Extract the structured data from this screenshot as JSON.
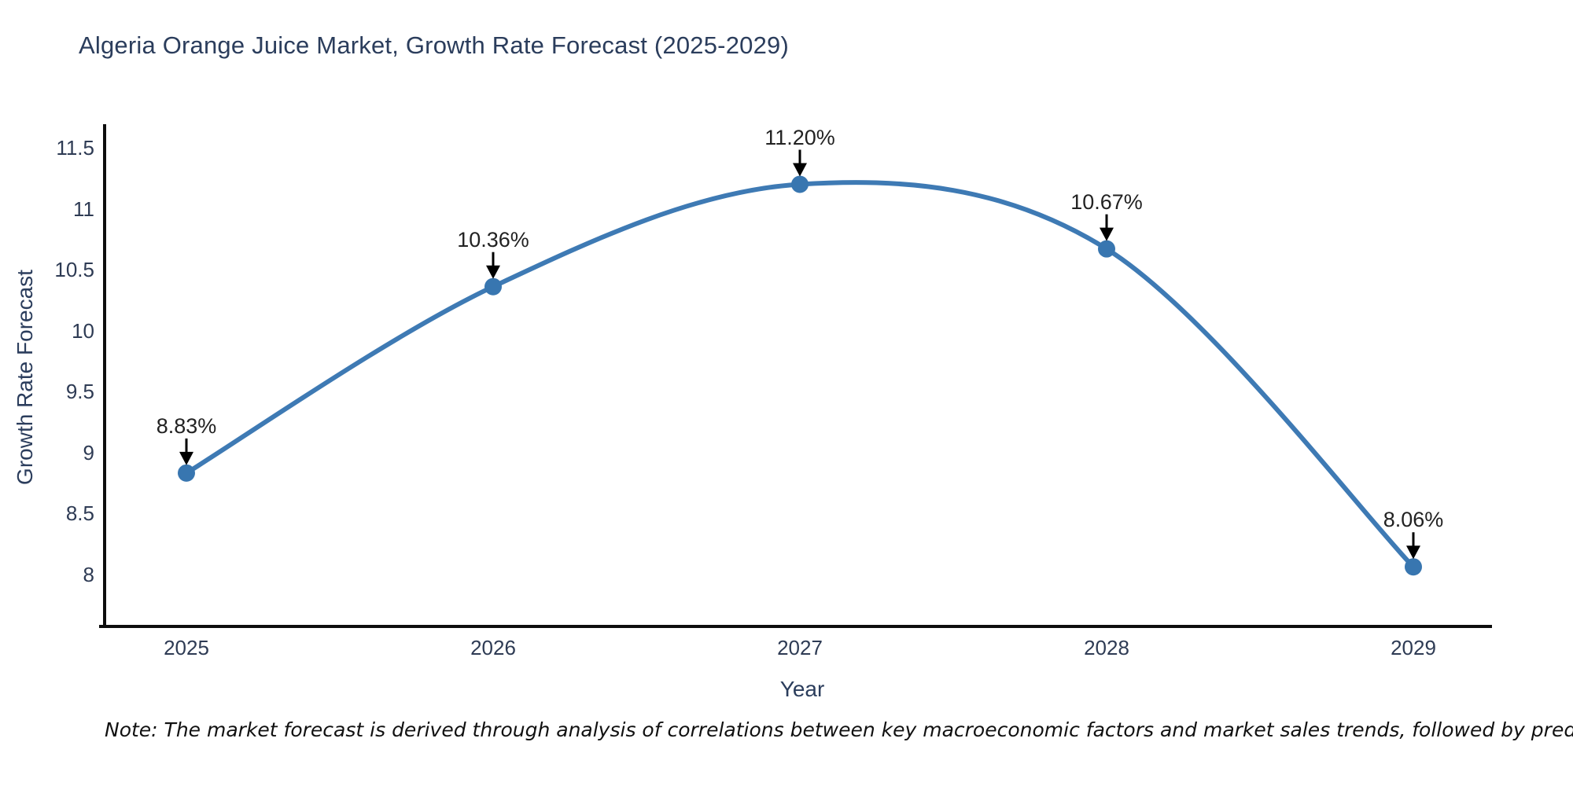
{
  "title": "Algeria Orange Juice Market, Growth Rate Forecast (2025-2029)",
  "note": "Note: The market forecast is derived through analysis of correlations between key macroeconomic factors and market sales trends, followed by predictive modeling to project future sales",
  "axes": {
    "x_label": "Year",
    "y_label": "Growth Rate Forecast",
    "y_ticks": [
      "11.5",
      "11",
      "10.5",
      "10",
      "9.5",
      "9",
      "8.5",
      "8"
    ],
    "x_ticks": [
      "2025",
      "2026",
      "2027",
      "2028",
      "2029"
    ]
  },
  "chart_data": {
    "type": "line",
    "line_shape": "spline",
    "title": "Algeria Orange Juice Market, Growth Rate Forecast (2025-2029)",
    "xlabel": "Year",
    "ylabel": "Growth Rate Forecast",
    "x": [
      2025,
      2026,
      2027,
      2028,
      2029
    ],
    "values": [
      8.83,
      10.36,
      11.2,
      10.67,
      8.06
    ],
    "point_labels": [
      "8.83%",
      "10.36%",
      "11.20%",
      "10.67%",
      "8.06%"
    ],
    "ylim": [
      7.55,
      11.68
    ],
    "grid": false,
    "legend": "none",
    "line_color": "#3E7AB4",
    "marker_color": "#3876B0",
    "annotation_arrow_color": "#000000",
    "axis_line_color": "#0d0d0d"
  }
}
